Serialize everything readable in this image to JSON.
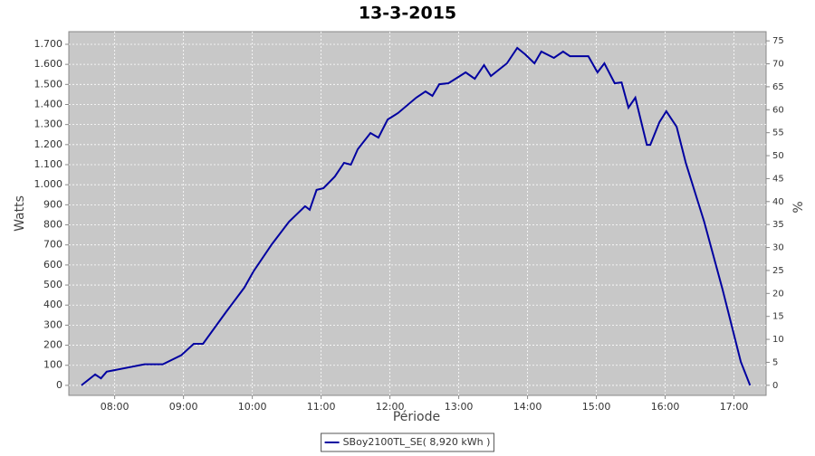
{
  "chart_data": {
    "type": "line",
    "title": "13-3-2015",
    "xlabel": "Période",
    "ylabel": "Watts",
    "y2label": "%",
    "x": [
      "07:31",
      "07:43",
      "07:48",
      "07:53",
      "08:26",
      "08:42",
      "08:58",
      "09:09",
      "09:17",
      "09:37",
      "09:53",
      "10:01",
      "10:17",
      "10:32",
      "10:46",
      "10:50",
      "10:56",
      "11:02",
      "11:12",
      "11:20",
      "11:26",
      "11:32",
      "11:43",
      "11:50",
      "11:58",
      "12:07",
      "12:23",
      "12:31",
      "12:37",
      "12:43",
      "12:51",
      "13:06",
      "13:14",
      "13:22",
      "13:28",
      "13:42",
      "13:51",
      "13:58",
      "14:06",
      "14:12",
      "14:23",
      "14:31",
      "14:37",
      "14:53",
      "15:01",
      "15:07",
      "15:16",
      "15:22",
      "15:28",
      "15:34",
      "15:44",
      "15:47",
      "15:55",
      "16:01",
      "16:10",
      "16:18",
      "16:34",
      "16:50",
      "17:06",
      "17:14"
    ],
    "series": [
      {
        "name": "SBoy2100TL_SE( 8,920 kWh )",
        "color": "#0000a0",
        "values": [
          0,
          54,
          35,
          68,
          105,
          105,
          150,
          207,
          207,
          365,
          487,
          568,
          703,
          816,
          893,
          875,
          974,
          983,
          1041,
          1109,
          1100,
          1177,
          1258,
          1235,
          1325,
          1357,
          1434,
          1465,
          1443,
          1501,
          1506,
          1560,
          1528,
          1596,
          1542,
          1605,
          1682,
          1650,
          1605,
          1664,
          1632,
          1664,
          1641,
          1641,
          1560,
          1605,
          1506,
          1510,
          1384,
          1434,
          1199,
          1199,
          1312,
          1366,
          1289,
          1109,
          816,
          478,
          117,
          0
        ]
      }
    ],
    "xlim": [
      "07:20",
      "17:28"
    ],
    "xticks": [
      "08:00",
      "09:00",
      "10:00",
      "11:00",
      "12:00",
      "13:00",
      "14:00",
      "15:00",
      "16:00",
      "17:00"
    ],
    "ylim": [
      -50,
      1763
    ],
    "yticks": [
      0,
      100,
      200,
      300,
      400,
      500,
      600,
      700,
      800,
      900,
      {
        "value": 1000,
        "label": "1.000"
      },
      {
        "value": 1100,
        "label": "1.100"
      },
      {
        "value": 1200,
        "label": "1.200"
      },
      {
        "value": 1300,
        "label": "1.300"
      },
      {
        "value": 1400,
        "label": "1.400"
      },
      {
        "value": 1500,
        "label": "1.500"
      },
      {
        "value": 1600,
        "label": "1.600"
      },
      {
        "value": 1700,
        "label": "1.700"
      }
    ],
    "y2lim": [
      -2.2,
      77
    ],
    "y2ticks": [
      0,
      5,
      10,
      15,
      20,
      25,
      30,
      35,
      40,
      45,
      50,
      55,
      60,
      65,
      70,
      75
    ],
    "grid": true,
    "plot_background": "#c8c8c8",
    "legend": "bottom"
  }
}
